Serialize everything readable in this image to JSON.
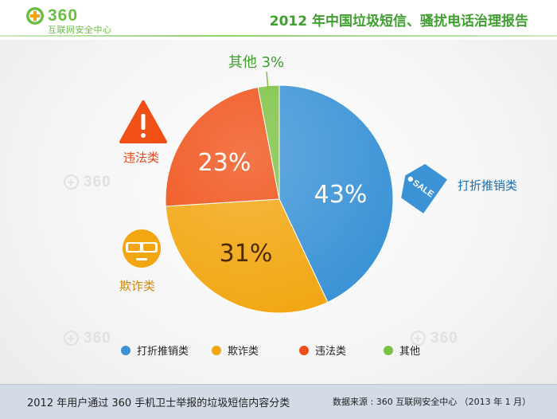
{
  "header": {
    "logo_number": "360",
    "logo_subtitle": "互联网安全中心",
    "title": "2012 年中国垃圾短信、骚扰电话治理报告"
  },
  "watermark_text": "360",
  "chart_data": {
    "type": "pie",
    "categories": [
      "打折推销类",
      "欺诈类",
      "违法类",
      "其他"
    ],
    "values": [
      43,
      31,
      23,
      3
    ],
    "value_labels": [
      "43%",
      "31%",
      "23%",
      "其他 3%"
    ],
    "colors": [
      "#3b93d6",
      "#f2a712",
      "#f05016",
      "#7cc142"
    ],
    "label_colors": [
      "#ffffff",
      "#4a2a00",
      "#ffffff",
      "#3f9f2f"
    ],
    "side_labels": [
      "打折推销类",
      "欺诈类",
      "违法类"
    ],
    "side_label_colors": [
      "#1b6fb3",
      "#d4870c",
      "#e0481a"
    ],
    "sale_tag_text": "SALE",
    "legend": [
      "打折推销类",
      "欺诈类",
      "违法类",
      "其他"
    ],
    "legend_position": "bottom"
  },
  "footer": {
    "caption": "2012 年用户通过 360 手机卫士举报的垃圾短信内容分类",
    "source": "数据来源 : 360 互联网安全中心 （2013 年 1 月）"
  }
}
